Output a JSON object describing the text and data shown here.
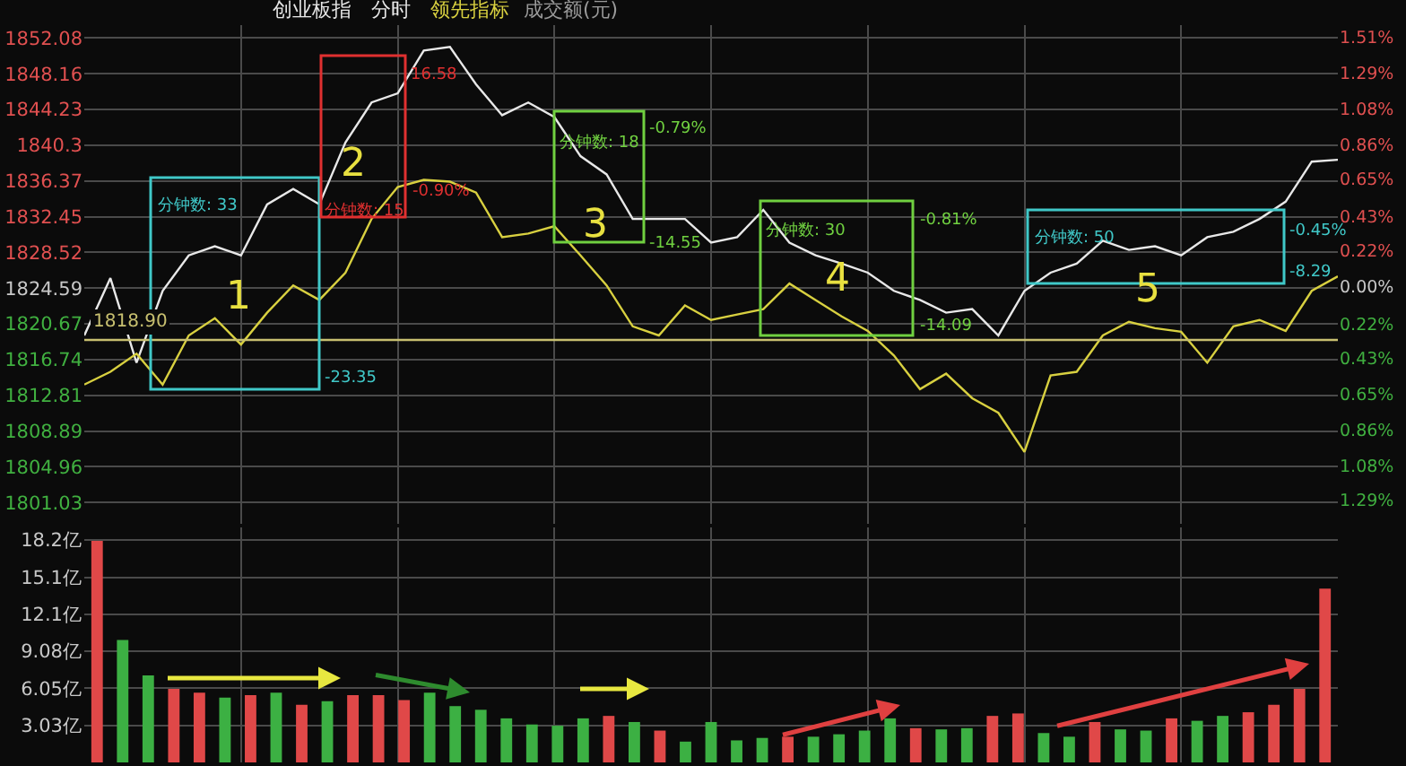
{
  "chart_data": [
    {
      "type": "line",
      "title": "创业板指",
      "categories": [
        null,
        null,
        null,
        null,
        null,
        null,
        null,
        null,
        null,
        null,
        null,
        null,
        null,
        null,
        null,
        null,
        null,
        null,
        null,
        null,
        null,
        null,
        null,
        null,
        null,
        null,
        null,
        null,
        null,
        null,
        null,
        null,
        null,
        null,
        null,
        null,
        null,
        null,
        null,
        null,
        null,
        null,
        null,
        null,
        null,
        null,
        null,
        null,
        null
      ],
      "series": [
        {
          "name": "分时",
          "color": "#e8e8e8",
          "values": [
            1819.4,
            1825.7,
            1816.4,
            1824.3,
            1828.2,
            1829.2,
            1828.2,
            1833.8,
            1835.5,
            1833.8,
            1840.6,
            1845.0,
            1846.0,
            1850.7,
            1851.1,
            1847.0,
            1843.6,
            1845.0,
            1843.4,
            1839.1,
            1837.1,
            1832.2,
            1832.2,
            1832.2,
            1829.6,
            1830.2,
            1833.2,
            1829.6,
            1828.2,
            1827.3,
            1826.3,
            1824.3,
            1823.3,
            1821.9,
            1822.3,
            1819.4,
            1824.3,
            1826.3,
            1827.3,
            1829.8,
            1828.8,
            1829.2,
            1828.2,
            1830.2,
            1830.8,
            1832.2,
            1834.1,
            1838.5,
            1838.7
          ]
        },
        {
          "name": "领先指标",
          "color": "#d8d040",
          "values": [
            1814.0,
            1815.4,
            1817.4,
            1814.0,
            1819.4,
            1821.3,
            1818.4,
            1821.9,
            1824.9,
            1823.3,
            1826.3,
            1832.2,
            1835.7,
            1836.5,
            1836.3,
            1835.1,
            1830.2,
            1830.6,
            1831.4,
            1828.2,
            1824.9,
            1820.4,
            1819.4,
            1822.7,
            1821.1,
            1821.7,
            1822.3,
            1825.1,
            1823.3,
            1821.5,
            1819.9,
            1817.2,
            1813.5,
            1815.2,
            1812.5,
            1810.9,
            1806.6,
            1815.0,
            1815.4,
            1819.4,
            1820.9,
            1820.2,
            1819.8,
            1816.4,
            1820.4,
            1821.1,
            1819.9,
            1824.3,
            1825.9
          ]
        }
      ],
      "ylim": [
        1798.7,
        1853.5
      ],
      "yticks": [
        1801.03,
        1804.96,
        1808.89,
        1812.81,
        1816.74,
        1820.67,
        1824.59,
        1828.52,
        1832.45,
        1836.37,
        1840.3,
        1844.23,
        1848.16,
        1852.08
      ],
      "y2lim": [
        -1.42,
        1.59
      ],
      "y2ticks": [
        {
          "value": -1.29,
          "label": "1.29%"
        },
        {
          "value": -1.08,
          "label": "1.08%"
        },
        {
          "value": -0.86,
          "label": "0.86%"
        },
        {
          "value": -0.65,
          "label": "0.65%"
        },
        {
          "value": -0.43,
          "label": "0.43%"
        },
        {
          "value": -0.22,
          "label": "0.22%"
        },
        {
          "value": 0,
          "label": "0.00%"
        },
        {
          "value": 0.22,
          "label": "0.22%"
        },
        {
          "value": 0.43,
          "label": "0.43%"
        },
        {
          "value": 0.65,
          "label": "0.65%"
        },
        {
          "value": 0.86,
          "label": "0.86%"
        },
        {
          "value": 1.08,
          "label": "1.08%"
        },
        {
          "value": 1.29,
          "label": "1.29%"
        },
        {
          "value": 1.51,
          "label": "1.51%"
        }
      ],
      "ref_lines": [
        {
          "axis": "y",
          "value": 1818.9,
          "label": "1818.90",
          "color": "#c8c070"
        }
      ],
      "annotations": [
        "分钟数: 33",
        "1",
        "-23.35",
        "16.58",
        "2",
        "分钟数: 15",
        "-0.90%",
        "分钟数: 18",
        "-0.79%",
        "3",
        "-14.55",
        "分钟数: 30",
        "-0.81%",
        "4",
        "-14.09",
        "分钟数: 50",
        "-0.45%",
        "5",
        "-8.29"
      ],
      "grid": true,
      "tick_labels": "y",
      "line_style": "solid",
      "marker": "none"
    },
    {
      "type": "bar",
      "categories": [
        null,
        null,
        null,
        null,
        null,
        null,
        null,
        null,
        null,
        null,
        null,
        null,
        null,
        null,
        null,
        null,
        null,
        null,
        null,
        null,
        null,
        null,
        null,
        null,
        null,
        null,
        null,
        null,
        null,
        null,
        null,
        null,
        null,
        null,
        null,
        null,
        null,
        null,
        null,
        null,
        null,
        null,
        null,
        null,
        null,
        null,
        null,
        null,
        null
      ],
      "series": [
        {
          "name": "成交额(元)",
          "color": "#9a9a9a",
          "values": [
            18.1,
            10.0,
            7.1,
            6.0,
            5.7,
            5.3,
            5.5,
            5.7,
            4.7,
            5.0,
            5.5,
            5.5,
            5.1,
            5.7,
            4.6,
            4.3,
            3.6,
            3.1,
            3.0,
            3.6,
            3.8,
            3.3,
            2.6,
            1.7,
            3.3,
            1.8,
            2.0,
            2.1,
            2.1,
            2.3,
            2.6,
            3.6,
            2.8,
            2.7,
            2.8,
            3.8,
            4.0,
            2.4,
            2.1,
            3.3,
            2.7,
            2.6,
            3.6,
            3.4,
            3.8,
            4.1,
            4.7,
            6.0,
            14.2
          ],
          "colors": [
            "#e04848",
            "#3cb043",
            "#3cb043",
            "#e04848",
            "#e04848",
            "#3cb043",
            "#e04848",
            "#3cb043",
            "#e04848",
            "#3cb043",
            "#e04848",
            "#e04848",
            "#e04848",
            "#3cb043",
            "#3cb043",
            "#3cb043",
            "#3cb043",
            "#3cb043",
            "#3cb043",
            "#3cb043",
            "#e04848",
            "#3cb043",
            "#e04848",
            "#3cb043",
            "#3cb043",
            "#3cb043",
            "#3cb043",
            "#e04848",
            "#3cb043",
            "#3cb043",
            "#3cb043",
            "#3cb043",
            "#e04848",
            "#3cb043",
            "#3cb043",
            "#e04848",
            "#e04848",
            "#3cb043",
            "#3cb043",
            "#e04848",
            "#3cb043",
            "#3cb043",
            "#e04848",
            "#3cb043",
            "#3cb043",
            "#e04848",
            "#e04848",
            "#e04848",
            "#e04848"
          ]
        }
      ],
      "ylim": [
        0,
        19.2
      ],
      "yticks": [
        {
          "value": 3.03,
          "label": "3.03亿"
        },
        {
          "value": 6.05,
          "label": "6.05亿"
        },
        {
          "value": 9.08,
          "label": "9.08亿"
        },
        {
          "value": 12.1,
          "label": "12.1亿"
        },
        {
          "value": 15.1,
          "label": "15.1亿"
        },
        {
          "value": 18.2,
          "label": "18.2亿"
        }
      ],
      "grid": true,
      "tick_labels": "y"
    }
  ]
}
